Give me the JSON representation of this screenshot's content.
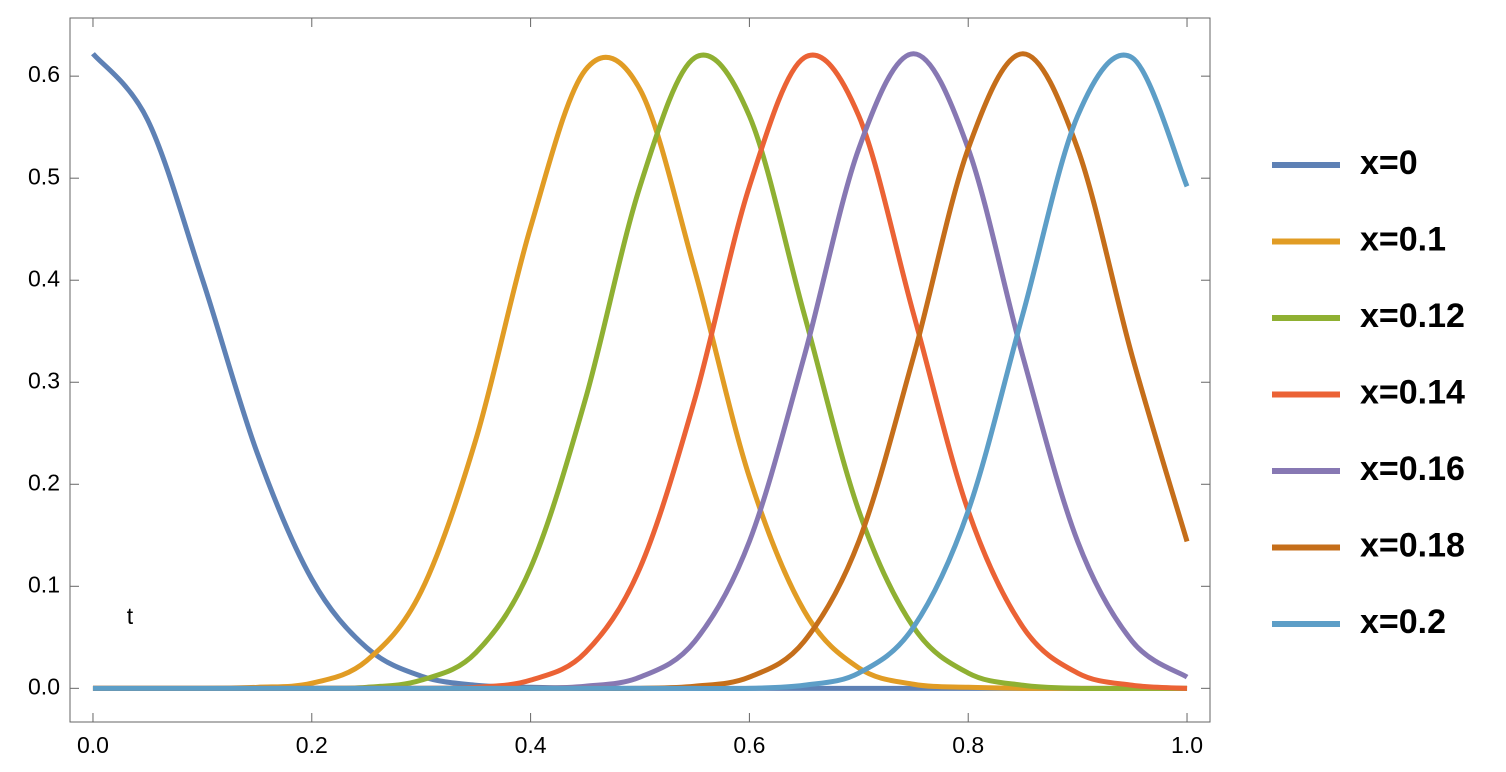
{
  "chart_data": {
    "type": "line",
    "x_label": "t",
    "x": [
      0,
      0.05,
      0.1,
      0.15,
      0.2,
      0.25,
      0.3,
      0.35,
      0.4,
      0.45,
      0.5,
      0.55,
      0.6,
      0.65,
      0.7,
      0.75,
      0.8,
      0.85,
      0.9,
      0.95,
      1
    ],
    "series": [
      {
        "name": "x=0",
        "color": "#5e81b5",
        "values": [
          0.622,
          0.557,
          0.401,
          0.231,
          0.107,
          0.04,
          0.012,
          0.003,
          0.001,
          0,
          0,
          0,
          0,
          0,
          0,
          0,
          0,
          0,
          0,
          0,
          0
        ]
      },
      {
        "name": "x=0.1",
        "color": "#e19c24",
        "values": [
          0,
          0,
          0,
          0.001,
          0.005,
          0.027,
          0.095,
          0.244,
          0.452,
          0.606,
          0.587,
          0.41,
          0.207,
          0.076,
          0.02,
          0.004,
          0.001,
          0,
          0,
          0,
          0
        ]
      },
      {
        "name": "x=0.12",
        "color": "#8fb032",
        "values": [
          0,
          0,
          0,
          0,
          0,
          0.001,
          0.008,
          0.035,
          0.118,
          0.283,
          0.492,
          0.618,
          0.561,
          0.367,
          0.174,
          0.06,
          0.015,
          0.003,
          0,
          0,
          0
        ]
      },
      {
        "name": "x=0.14",
        "color": "#eb6235",
        "values": [
          0,
          0,
          0,
          0,
          0,
          0,
          0,
          0.001,
          0.008,
          0.035,
          0.118,
          0.283,
          0.492,
          0.618,
          0.561,
          0.367,
          0.174,
          0.06,
          0.015,
          0.003,
          0
        ]
      },
      {
        "name": "x=0.16",
        "color": "#8778b3",
        "values": [
          0,
          0,
          0,
          0,
          0,
          0,
          0,
          0,
          0,
          0.002,
          0.011,
          0.046,
          0.144,
          0.325,
          0.529,
          0.622,
          0.529,
          0.325,
          0.144,
          0.046,
          0.011
        ]
      },
      {
        "name": "x=0.18",
        "color": "#c56e1a",
        "values": [
          0,
          0,
          0,
          0,
          0,
          0,
          0,
          0,
          0,
          0,
          0,
          0.002,
          0.011,
          0.046,
          0.144,
          0.325,
          0.529,
          0.622,
          0.529,
          0.325,
          0.144
        ]
      },
      {
        "name": "x=0.2",
        "color": "#5d9ec7",
        "values": [
          0,
          0,
          0,
          0,
          0,
          0,
          0,
          0,
          0,
          0,
          0,
          0,
          0,
          0.003,
          0.015,
          0.06,
          0.174,
          0.367,
          0.561,
          0.618,
          0.492
        ]
      }
    ],
    "xlim": [
      -0.021,
      1.021
    ],
    "ylim": [
      -0.033,
      0.657
    ],
    "xticks": [
      {
        "value": 0,
        "label": "0.0"
      },
      0.2,
      0.4,
      0.6,
      0.8,
      {
        "value": 1,
        "label": "1.0"
      }
    ],
    "yticks": [
      {
        "value": 0,
        "label": "0.0"
      },
      0.1,
      0.2,
      0.3,
      0.4,
      0.5,
      0.6
    ],
    "legend": "right"
  }
}
